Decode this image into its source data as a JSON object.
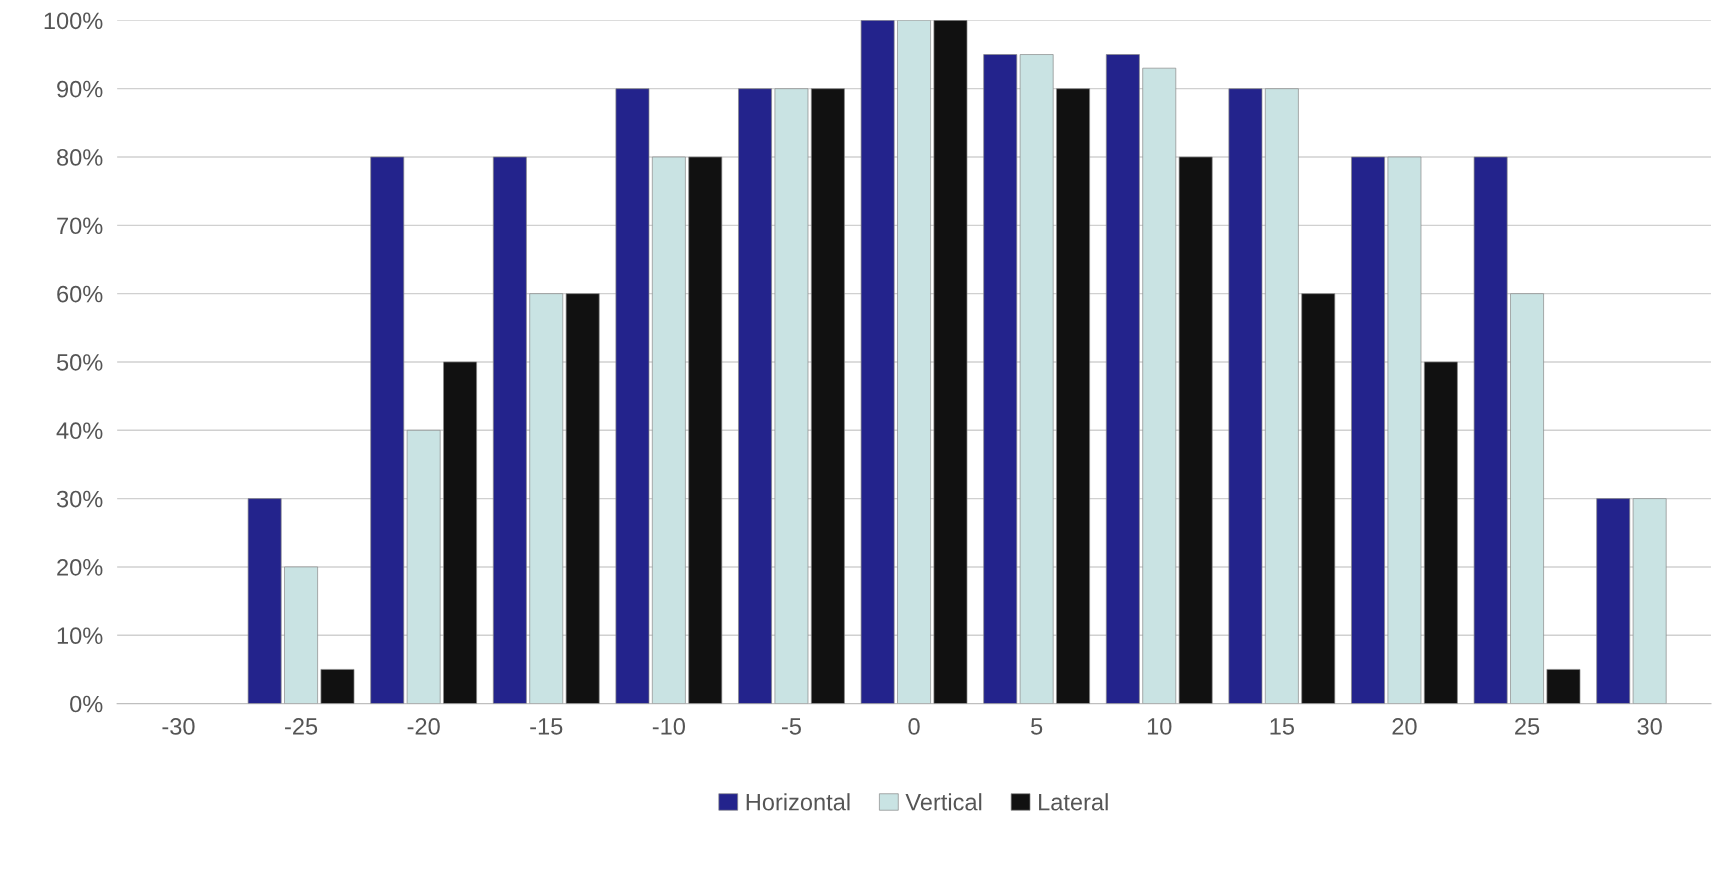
{
  "chart_data": {
    "type": "bar",
    "categories": [
      "-30",
      "-25",
      "-20",
      "-15",
      "-10",
      "-5",
      "0",
      "5",
      "10",
      "15",
      "20",
      "25",
      "30"
    ],
    "series": [
      {
        "name": "Horizontal",
        "color": "#23238c",
        "values": [
          null,
          30,
          80,
          80,
          90,
          90,
          100,
          95,
          95,
          90,
          80,
          80,
          30
        ]
      },
      {
        "name": "Vertical",
        "color": "#c9e3e3",
        "values": [
          null,
          20,
          40,
          60,
          80,
          90,
          100,
          95,
          93,
          90,
          80,
          60,
          30
        ]
      },
      {
        "name": "Lateral",
        "color": "#111111",
        "values": [
          null,
          5,
          50,
          60,
          80,
          90,
          100,
          90,
          80,
          60,
          50,
          5,
          null
        ]
      }
    ],
    "ylim": [
      0,
      100
    ],
    "yticks": [
      {
        "value": 0,
        "label": "0%"
      },
      {
        "value": 10,
        "label": "10%"
      },
      {
        "value": 20,
        "label": "20%"
      },
      {
        "value": 30,
        "label": "30%"
      },
      {
        "value": 40,
        "label": "40%"
      },
      {
        "value": 50,
        "label": "50%"
      },
      {
        "value": 60,
        "label": "60%"
      },
      {
        "value": 70,
        "label": "70%"
      },
      {
        "value": 80,
        "label": "80%"
      },
      {
        "value": 90,
        "label": "90%"
      },
      {
        "value": 100,
        "label": "100%"
      }
    ],
    "grid": "y",
    "legend": "bottom"
  }
}
